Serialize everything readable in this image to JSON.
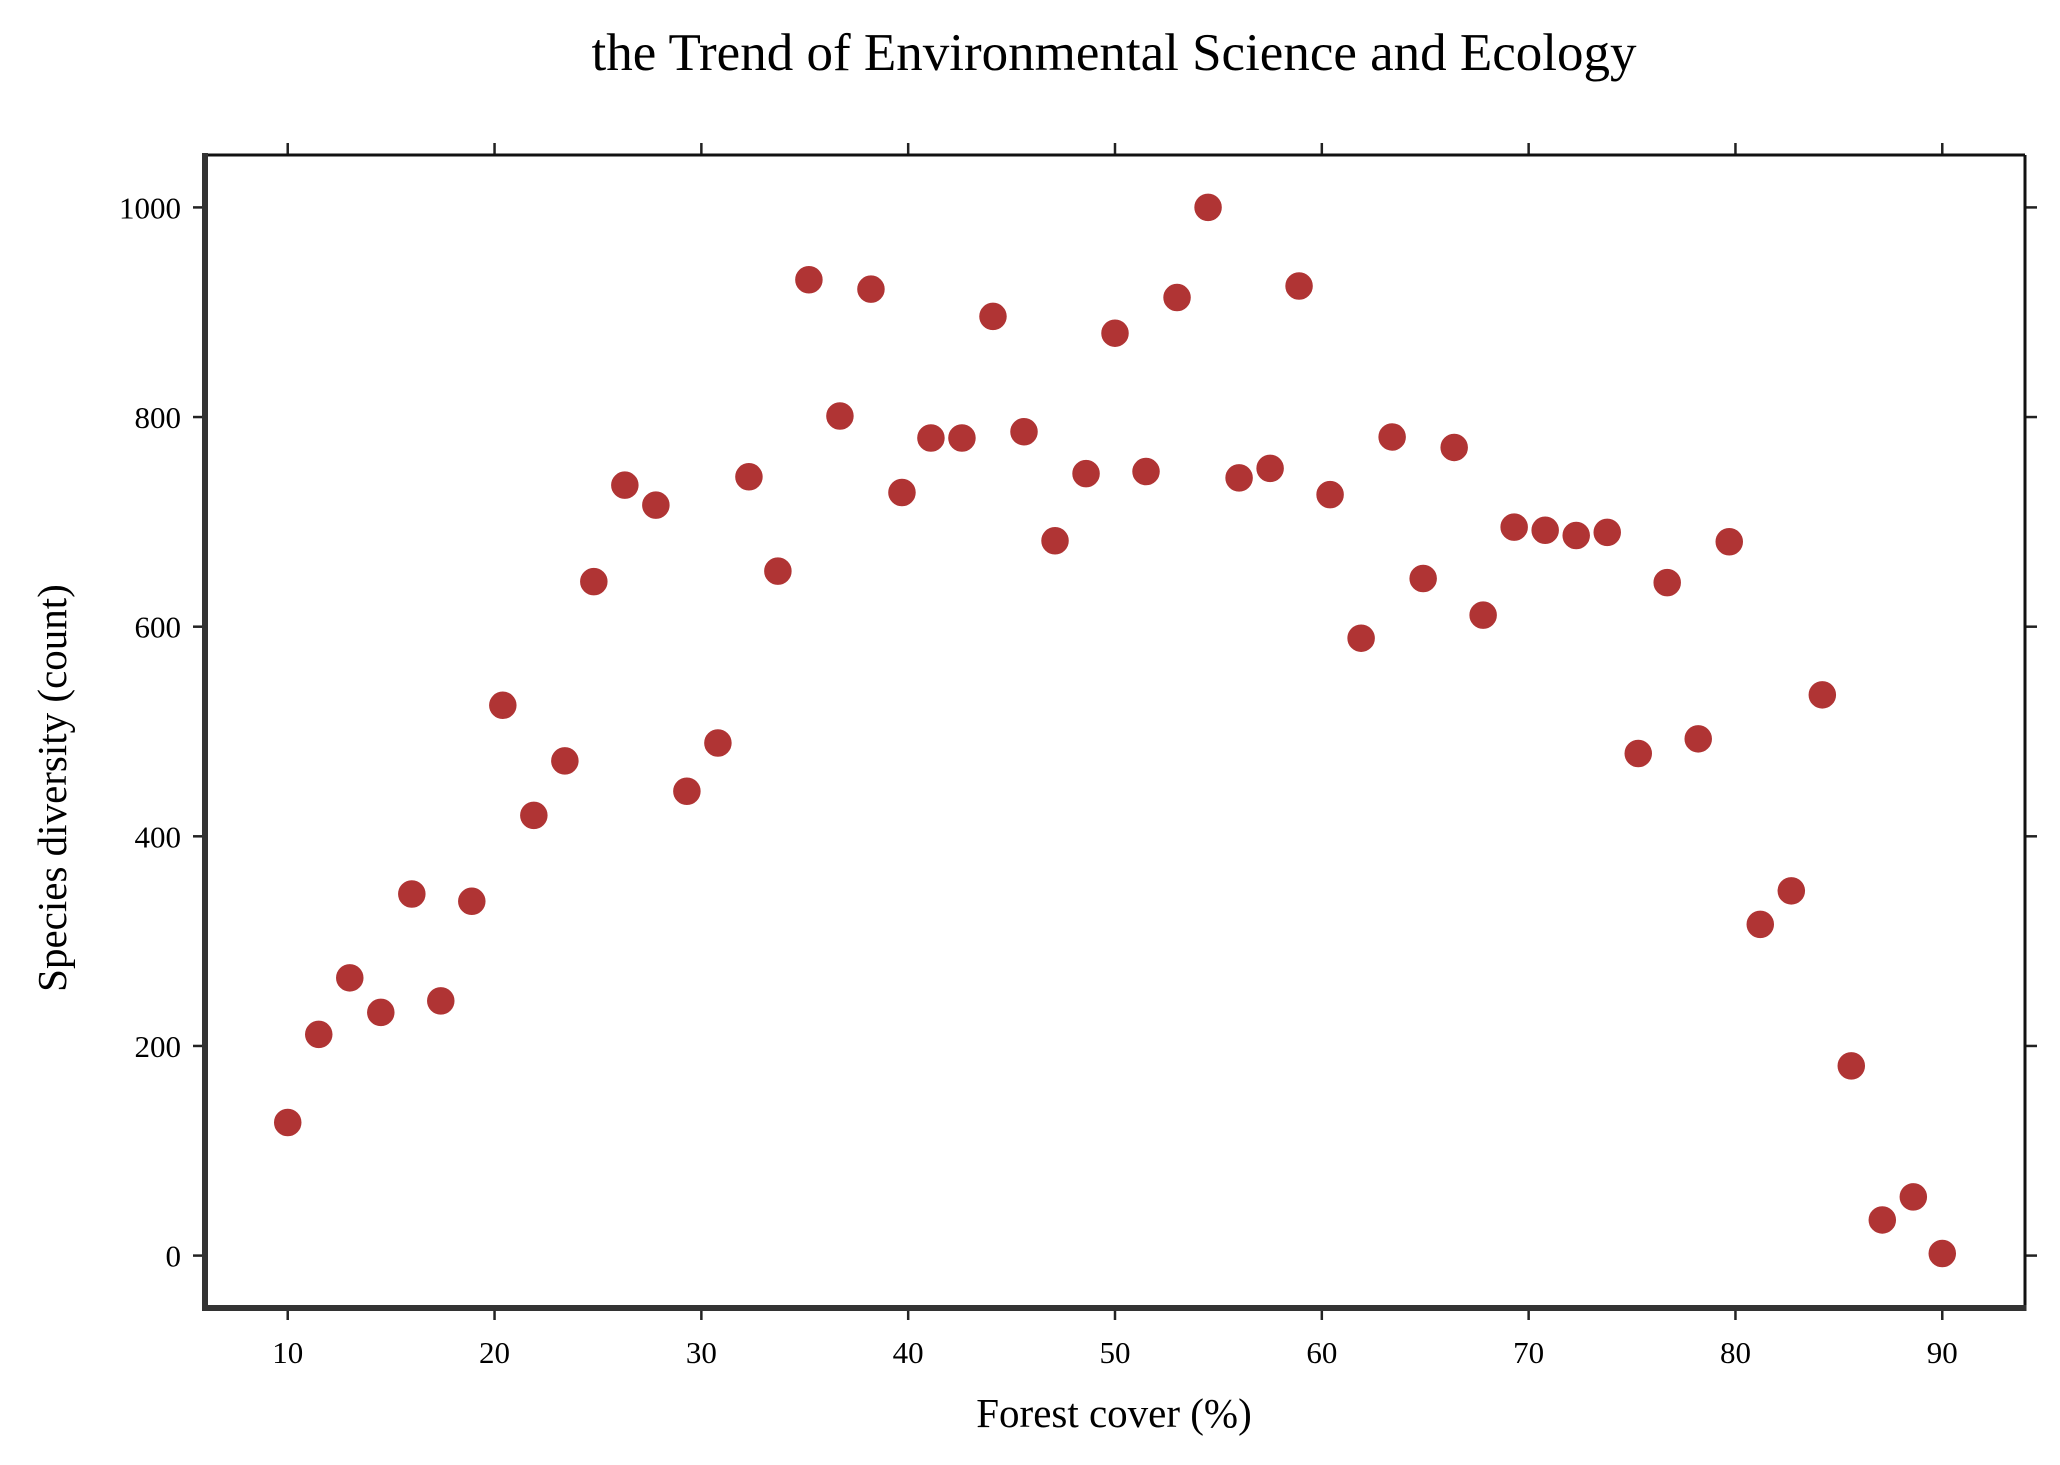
{
  "chart_data": {
    "type": "scatter",
    "title": "the Trend of Environmental Science and Ecology",
    "xlabel": "Forest cover (%)",
    "ylabel": "Species diversity (count)",
    "xlim": [
      6,
      94
    ],
    "ylim": [
      -50,
      1050
    ],
    "xticks": [
      10,
      20,
      30,
      40,
      50,
      60,
      70,
      80,
      90
    ],
    "yticks": [
      0,
      200,
      400,
      600,
      800,
      1000
    ],
    "grid": false,
    "legend": "none",
    "marker_color": "#b03434",
    "series": [
      {
        "x": [
          10,
          11.5,
          13,
          14.5,
          16,
          17.4,
          18.9,
          20.4,
          21.9,
          23.4,
          24.8,
          26.3,
          27.8,
          29.3,
          30.8,
          32.3,
          33.7,
          35.2,
          36.7,
          38.2,
          39.7,
          41.1,
          42.6,
          44.1,
          45.6,
          47.1,
          48.6,
          50,
          51.5,
          53,
          54.5,
          56,
          57.5,
          58.9,
          60.4,
          61.9,
          63.4,
          64.9,
          66.4,
          67.8,
          69.3,
          70.8,
          72.3,
          73.8,
          75.3,
          76.7,
          78.2,
          79.7,
          81.2,
          82.7,
          84.2,
          85.6,
          87.1,
          88.6,
          90
        ],
        "y": [
          127,
          211,
          265,
          232,
          345,
          243,
          338,
          525,
          420,
          472,
          643,
          735,
          716,
          443,
          489,
          743,
          653,
          931,
          801,
          922,
          728,
          780,
          780,
          896,
          786,
          682,
          746,
          880,
          748,
          914,
          1000,
          742,
          751,
          925,
          726,
          589,
          781,
          646,
          771,
          611,
          695,
          692,
          687,
          690,
          479,
          642,
          493,
          681,
          316,
          348,
          535,
          181,
          34,
          56,
          2
        ]
      }
    ]
  }
}
